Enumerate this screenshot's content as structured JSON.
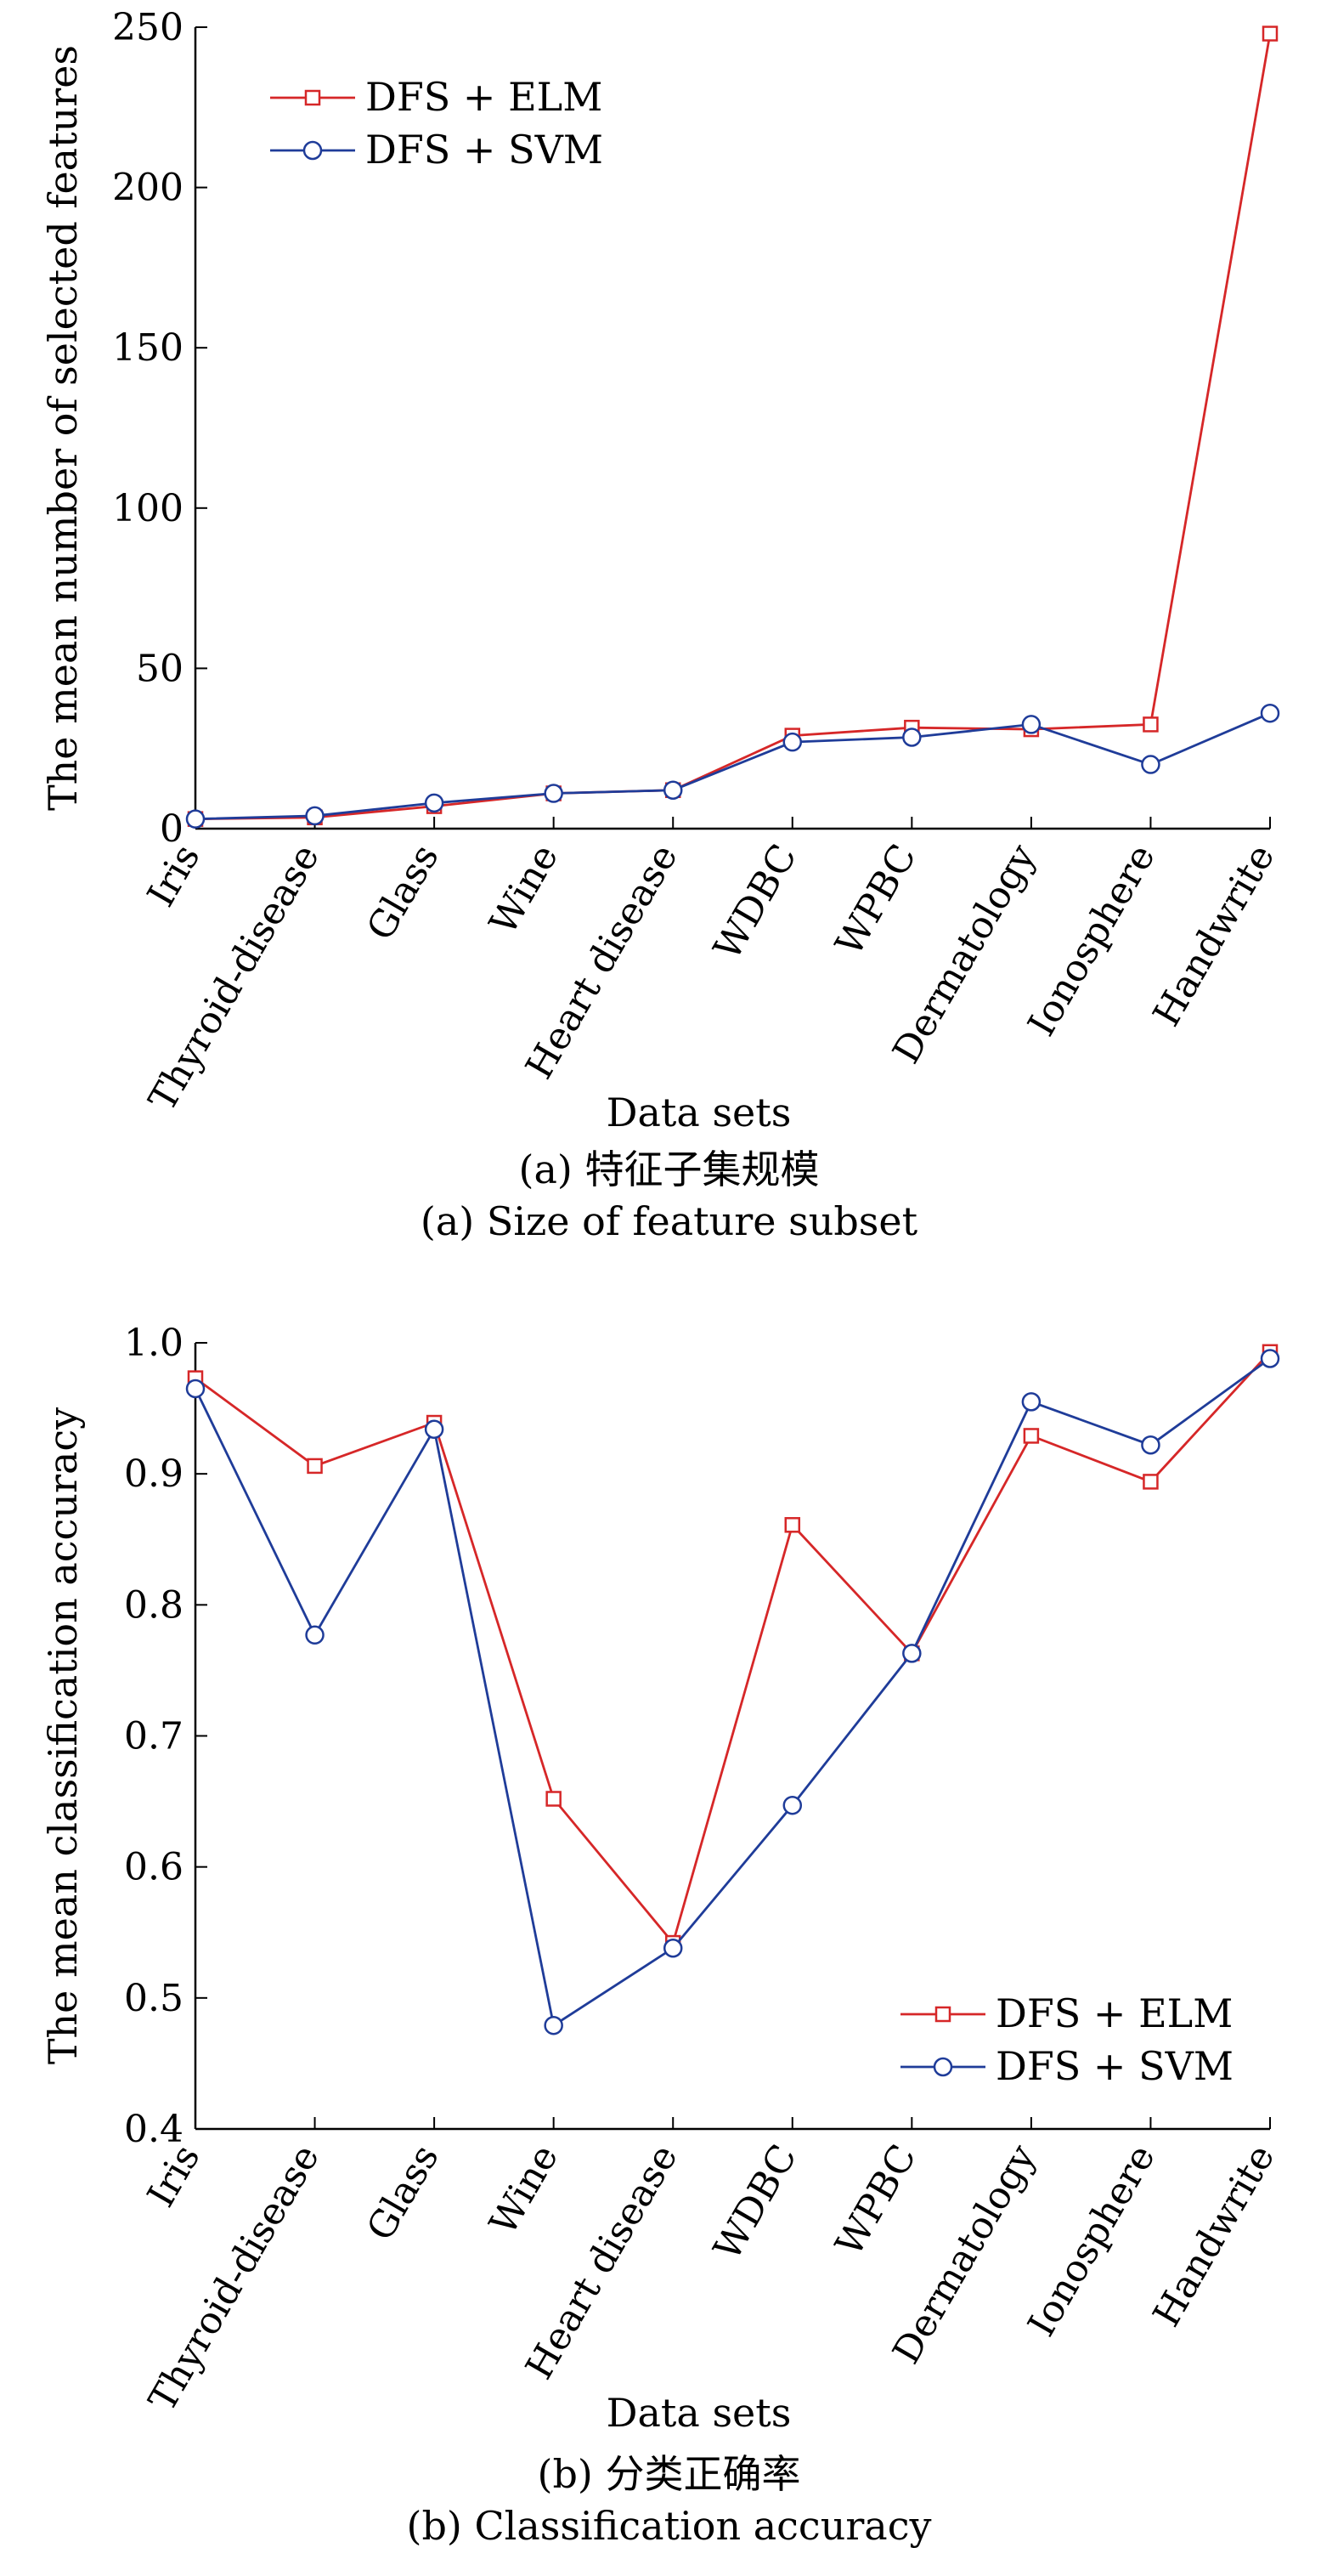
{
  "chart_data": [
    {
      "type": "line",
      "xlabel": "Data sets",
      "ylabel": "The mean number of selected features",
      "caption_cn": "(a) 特征子集规模",
      "caption_en": "(a) Size of feature subset",
      "categories": [
        "Iris",
        "Thyroid-disease",
        "Glass",
        "Wine",
        "Heart disease",
        "WDBC",
        "WPBC",
        "Dermatology",
        "Ionosphere",
        "Handwrite"
      ],
      "ylim": [
        0,
        250
      ],
      "yticks": [
        0,
        50,
        100,
        150,
        200,
        250
      ],
      "legend_position": "top-left",
      "series": [
        {
          "name": "DFS + ELM",
          "color": "#d62728",
          "marker": "square",
          "values": [
            3,
            3.5,
            7,
            11,
            12,
            29,
            31.5,
            31,
            32.5,
            248
          ]
        },
        {
          "name": "DFS + SVM",
          "color": "#1f3c99",
          "marker": "circle",
          "values": [
            3,
            4,
            8,
            11,
            12,
            27,
            28.5,
            32.5,
            20,
            36
          ]
        }
      ]
    },
    {
      "type": "line",
      "xlabel": "Data sets",
      "ylabel": "The mean classification accuracy",
      "caption_cn": "(b) 分类正确率",
      "caption_en": "(b) Classification accuracy",
      "categories": [
        "Iris",
        "Thyroid-disease",
        "Glass",
        "Wine",
        "Heart disease",
        "WDBC",
        "WPBC",
        "Dermatology",
        "Ionosphere",
        "Handwrite"
      ],
      "ylim": [
        0.4,
        1.0
      ],
      "yticks": [
        0.4,
        0.5,
        0.6,
        0.7,
        0.8,
        0.9,
        1.0
      ],
      "legend_position": "bottom-right",
      "series": [
        {
          "name": "DFS + ELM",
          "color": "#d62728",
          "marker": "square",
          "values": [
            0.973,
            0.906,
            0.939,
            0.652,
            0.542,
            0.861,
            0.763,
            0.929,
            0.894,
            0.993
          ]
        },
        {
          "name": "DFS + SVM",
          "color": "#1f3c99",
          "marker": "circle",
          "values": [
            0.965,
            0.777,
            0.934,
            0.479,
            0.538,
            0.647,
            0.763,
            0.955,
            0.922,
            0.988
          ]
        }
      ]
    }
  ]
}
